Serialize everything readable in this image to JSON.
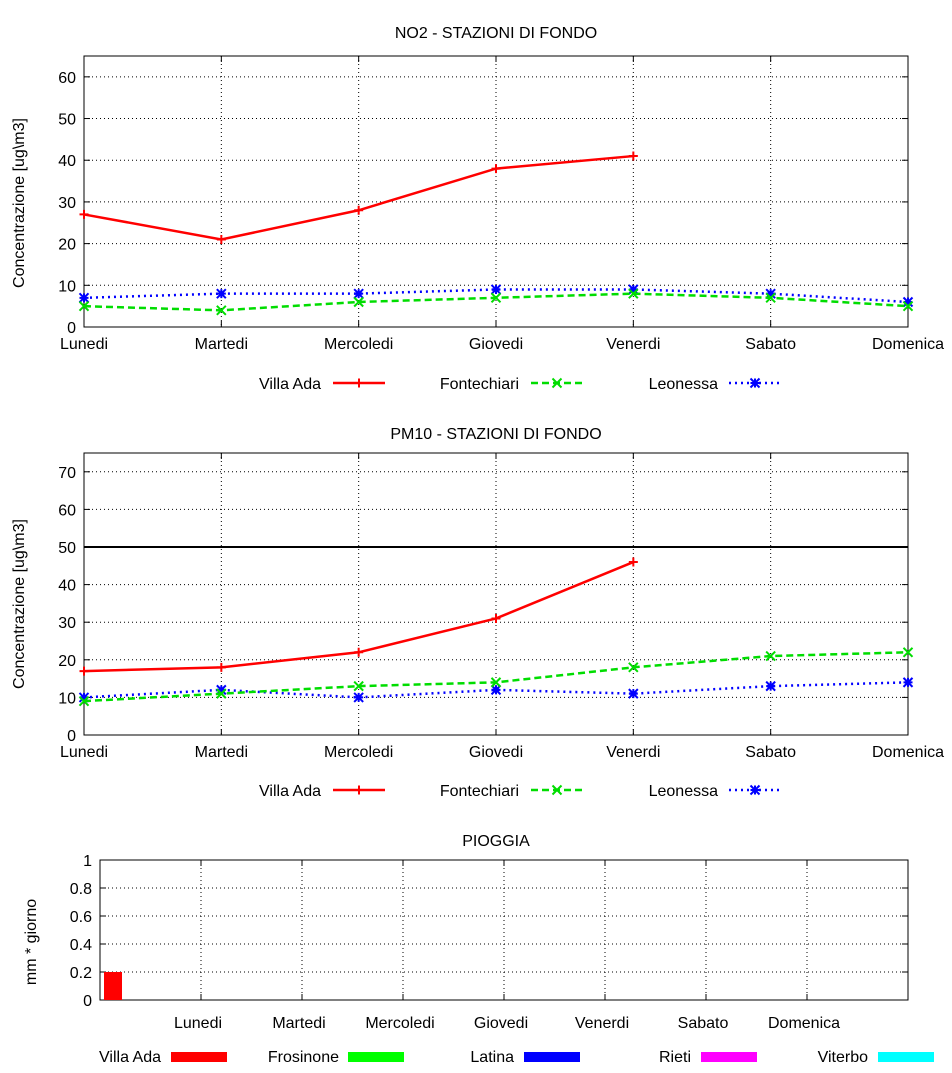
{
  "chart_data": [
    {
      "type": "line",
      "title": "NO2 - STAZIONI DI FONDO",
      "xlabel": "",
      "ylabel": "Concentrazione [ug\\m3]",
      "categories": [
        "Lunedi",
        "Martedi",
        "Mercoledi",
        "Giovedi",
        "Venerdi",
        "Sabato",
        "Domenica"
      ],
      "ylim": [
        0,
        65
      ],
      "yticks": [
        "0",
        "10",
        "20",
        "30",
        "40",
        "50",
        "60"
      ],
      "grid": true,
      "legend_position": "bottom",
      "series": [
        {
          "name": "Villa Ada",
          "color": "#ff0000",
          "marker": "plus",
          "dash": "solid",
          "values": [
            27,
            21,
            28,
            38,
            41,
            null,
            null
          ]
        },
        {
          "name": "Fontechiari",
          "color": "#00dd00",
          "marker": "x",
          "dash": "dashed",
          "values": [
            5,
            4,
            6,
            7,
            8,
            7,
            5
          ]
        },
        {
          "name": "Leonessa",
          "color": "#0000ff",
          "marker": "star",
          "dash": "dotted",
          "values": [
            7,
            8,
            8,
            9,
            9,
            8,
            6
          ]
        }
      ]
    },
    {
      "type": "line",
      "title": "PM10 - STAZIONI DI FONDO",
      "xlabel": "",
      "ylabel": "Concentrazione [ug\\m3]",
      "categories": [
        "Lunedi",
        "Martedi",
        "Mercoledi",
        "Giovedi",
        "Venerdi",
        "Sabato",
        "Domenica"
      ],
      "ylim": [
        0,
        75
      ],
      "yticks": [
        "0",
        "10",
        "20",
        "30",
        "40",
        "50",
        "60",
        "70"
      ],
      "threshold": 50,
      "grid": true,
      "legend_position": "bottom",
      "series": [
        {
          "name": "Villa Ada",
          "color": "#ff0000",
          "marker": "plus",
          "dash": "solid",
          "values": [
            17,
            18,
            22,
            31,
            46,
            null,
            null
          ]
        },
        {
          "name": "Fontechiari",
          "color": "#00dd00",
          "marker": "x",
          "dash": "dashed",
          "values": [
            9,
            11,
            13,
            14,
            18,
            21,
            22
          ]
        },
        {
          "name": "Leonessa",
          "color": "#0000ff",
          "marker": "star",
          "dash": "dotted",
          "values": [
            10,
            12,
            10,
            12,
            11,
            13,
            14
          ]
        }
      ]
    },
    {
      "type": "bar",
      "title": "PIOGGIA",
      "xlabel": "",
      "ylabel": "mm * giorno",
      "categories": [
        "Lunedi",
        "Martedi",
        "Mercoledi",
        "Giovedi",
        "Venerdi",
        "Sabato",
        "Domenica"
      ],
      "ylim": [
        0,
        1
      ],
      "yticks": [
        "0",
        "0.2",
        "0.4",
        "0.6",
        "0.8",
        "1"
      ],
      "grid": true,
      "legend_position": "bottom",
      "series": [
        {
          "name": "Villa Ada",
          "color": "#ff0000",
          "values": [
            0.2,
            0,
            0,
            0,
            0,
            0,
            0
          ]
        },
        {
          "name": "Frosinone",
          "color": "#00ff00",
          "values": [
            0,
            0,
            0,
            0,
            0,
            0,
            0
          ]
        },
        {
          "name": "Latina",
          "color": "#0000ff",
          "values": [
            0,
            0,
            0,
            0,
            0,
            0,
            0
          ]
        },
        {
          "name": "Rieti",
          "color": "#ff00ff",
          "values": [
            0,
            0,
            0,
            0,
            0,
            0,
            0
          ]
        },
        {
          "name": "Viterbo",
          "color": "#00ffff",
          "values": [
            0,
            0,
            0,
            0,
            0,
            0,
            0
          ]
        }
      ]
    }
  ]
}
